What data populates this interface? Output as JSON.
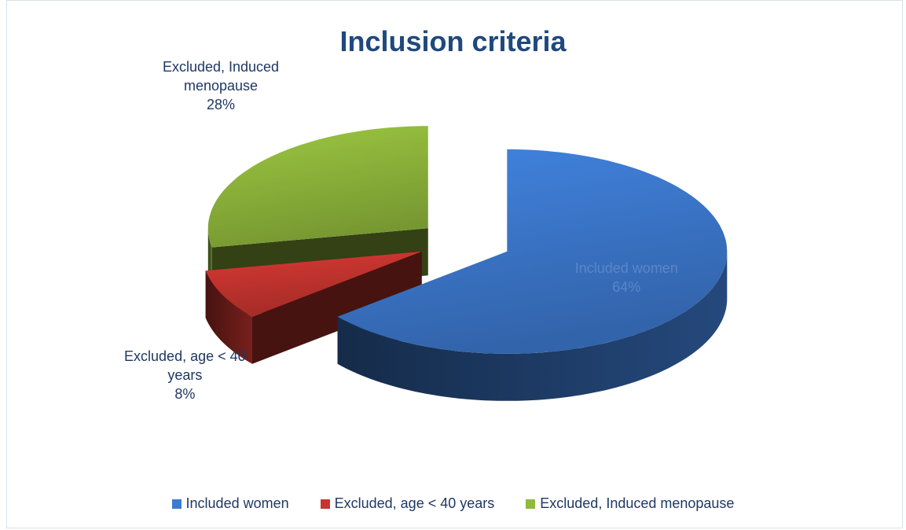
{
  "chart_data": {
    "type": "pie",
    "title": "Inclusion criteria",
    "categories": [
      "Included women",
      "Excluded, age < 40 years",
      "Excluded, Induced menopause"
    ],
    "values": [
      64,
      8,
      28
    ],
    "value_labels": [
      "64%",
      "8%",
      "28%"
    ],
    "colors": [
      "#3d7ad0",
      "#c8352f",
      "#91b93c"
    ],
    "legend": "bottom"
  }
}
